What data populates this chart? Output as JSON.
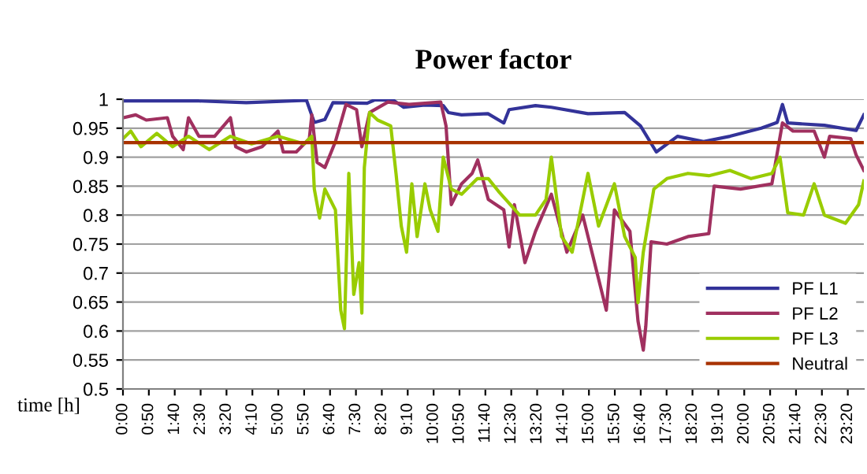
{
  "chart_data": {
    "type": "line",
    "title": "Power factor",
    "xlabel": "time [h]",
    "xlim": [
      0,
      23.85
    ],
    "ylim": [
      0.5,
      1
    ],
    "yticks": [
      0.5,
      0.55,
      0.6,
      0.65,
      0.7,
      0.75,
      0.8,
      0.85,
      0.9,
      0.95,
      1
    ],
    "xticks": [
      {
        "value": 0,
        "label": "0:00"
      },
      {
        "value": 0.8333,
        "label": "0:50"
      },
      {
        "value": 1.6667,
        "label": "1:40"
      },
      {
        "value": 2.5,
        "label": "2:30"
      },
      {
        "value": 3.3333,
        "label": "3:20"
      },
      {
        "value": 4.1667,
        "label": "4:10"
      },
      {
        "value": 5,
        "label": "5:00"
      },
      {
        "value": 5.8333,
        "label": "5:50"
      },
      {
        "value": 6.6667,
        "label": "6:40"
      },
      {
        "value": 7.5,
        "label": "7:30"
      },
      {
        "value": 8.3333,
        "label": "8:20"
      },
      {
        "value": 9.1667,
        "label": "9:10"
      },
      {
        "value": 10,
        "label": "10:00"
      },
      {
        "value": 10.8333,
        "label": "10:50"
      },
      {
        "value": 11.6667,
        "label": "11:40"
      },
      {
        "value": 12.5,
        "label": "12:30"
      },
      {
        "value": 13.3333,
        "label": "13:20"
      },
      {
        "value": 14.1667,
        "label": "14:10"
      },
      {
        "value": 15,
        "label": "15:00"
      },
      {
        "value": 15.8333,
        "label": "15:50"
      },
      {
        "value": 16.6667,
        "label": "16:40"
      },
      {
        "value": 17.5,
        "label": "17:30"
      },
      {
        "value": 18.3333,
        "label": "18:20"
      },
      {
        "value": 19.1667,
        "label": "19:10"
      },
      {
        "value": 20,
        "label": "20:00"
      },
      {
        "value": 20.8333,
        "label": "20:50"
      },
      {
        "value": 21.6667,
        "label": "21:40"
      },
      {
        "value": 22.5,
        "label": "22:30"
      },
      {
        "value": 23.3333,
        "label": "23:20"
      }
    ],
    "grid": "y",
    "legend": "bottom right",
    "series": [
      {
        "name": "PF L1",
        "color": "#333399",
        "x": [
          0,
          2.45,
          3.97,
          5.91,
          6.16,
          6.5,
          6.76,
          7.86,
          8.11,
          8.71,
          9.04,
          9.72,
          10.31,
          10.48,
          10.9,
          11.75,
          12.26,
          12.43,
          13.28,
          13.79,
          14.97,
          16.15,
          16.66,
          17.17,
          17.85,
          18.69,
          19.54,
          20.55,
          21.06,
          21.23,
          21.4,
          22.58,
          23.6,
          23.85
        ],
        "values": [
          0.997,
          0.997,
          0.994,
          0.998,
          0.96,
          0.965,
          0.994,
          0.993,
          0.999,
          0.998,
          0.986,
          0.99,
          0.989,
          0.977,
          0.973,
          0.975,
          0.959,
          0.982,
          0.989,
          0.986,
          0.975,
          0.977,
          0.954,
          0.909,
          0.936,
          0.927,
          0.936,
          0.95,
          0.96,
          0.991,
          0.959,
          0.955,
          0.946,
          0.973
        ]
      },
      {
        "name": "PF L2",
        "color": "#a0305f",
        "x": [
          0,
          0.41,
          0.75,
          1.43,
          1.6,
          1.94,
          2.11,
          2.445,
          2.95,
          3.46,
          3.63,
          3.97,
          4.48,
          4.99,
          5.16,
          5.58,
          6.0,
          6.08,
          6.25,
          6.5,
          6.84,
          7.18,
          7.52,
          7.69,
          7.94,
          8.53,
          9.21,
          10.23,
          10.4,
          10.57,
          10.9,
          11.24,
          11.42,
          11.76,
          12.26,
          12.43,
          12.6,
          12.94,
          13.28,
          13.79,
          14.29,
          14.8,
          15.56,
          15.82,
          16.32,
          16.58,
          16.75,
          16.83,
          17.0,
          17.51,
          18.19,
          18.86,
          19.03,
          19.88,
          20.89,
          21.23,
          21.57,
          22.25,
          22.58,
          22.75,
          23.43,
          23.6,
          23.85
        ],
        "values": [
          0.968,
          0.973,
          0.964,
          0.968,
          0.936,
          0.913,
          0.968,
          0.936,
          0.936,
          0.968,
          0.918,
          0.909,
          0.918,
          0.945,
          0.909,
          0.909,
          0.932,
          0.973,
          0.891,
          0.882,
          0.927,
          0.991,
          0.982,
          0.918,
          0.977,
          0.995,
          0.991,
          0.995,
          0.954,
          0.818,
          0.854,
          0.872,
          0.895,
          0.827,
          0.809,
          0.745,
          0.818,
          0.718,
          0.772,
          0.836,
          0.736,
          0.8,
          0.636,
          0.809,
          0.772,
          0.617,
          0.567,
          0.608,
          0.754,
          0.75,
          0.763,
          0.768,
          0.85,
          0.845,
          0.854,
          0.959,
          0.945,
          0.945,
          0.9,
          0.936,
          0.932,
          0.904,
          0.877
        ]
      },
      {
        "name": "PF L3",
        "color": "#99cc00",
        "x": [
          0,
          0.25,
          0.58,
          1.09,
          1.6,
          2.11,
          2.78,
          3.46,
          4.14,
          4.99,
          5.83,
          6.08,
          6.16,
          6.33,
          6.5,
          6.84,
          7.01,
          7.13,
          7.27,
          7.43,
          7.6,
          7.69,
          7.77,
          7.94,
          8.2,
          8.62,
          8.79,
          8.96,
          9.13,
          9.3,
          9.47,
          9.72,
          9.89,
          10.14,
          10.31,
          10.57,
          10.9,
          11.41,
          11.76,
          12.09,
          12.77,
          13.28,
          13.62,
          13.79,
          14.12,
          14.46,
          14.97,
          15.31,
          15.82,
          16.15,
          16.49,
          16.58,
          16.75,
          17.09,
          17.51,
          18.19,
          18.86,
          19.54,
          20.22,
          20.89,
          21.15,
          21.4,
          21.91,
          22.25,
          22.58,
          23.26,
          23.68,
          23.85
        ],
        "values": [
          0.932,
          0.945,
          0.918,
          0.941,
          0.918,
          0.936,
          0.913,
          0.936,
          0.923,
          0.936,
          0.923,
          0.936,
          0.845,
          0.795,
          0.845,
          0.809,
          0.636,
          0.604,
          0.872,
          0.663,
          0.718,
          0.631,
          0.882,
          0.977,
          0.964,
          0.954,
          0.872,
          0.781,
          0.736,
          0.854,
          0.763,
          0.854,
          0.809,
          0.772,
          0.9,
          0.845,
          0.836,
          0.863,
          0.863,
          0.841,
          0.8,
          0.8,
          0.827,
          0.9,
          0.763,
          0.736,
          0.872,
          0.781,
          0.854,
          0.763,
          0.727,
          0.649,
          0.736,
          0.845,
          0.863,
          0.872,
          0.868,
          0.877,
          0.863,
          0.872,
          0.9,
          0.804,
          0.8,
          0.854,
          0.8,
          0.786,
          0.818,
          0.859
        ]
      },
      {
        "name": "Neutral",
        "color": "#a83200",
        "x": [
          0,
          23.85
        ],
        "values": [
          0.925,
          0.925
        ]
      }
    ]
  }
}
